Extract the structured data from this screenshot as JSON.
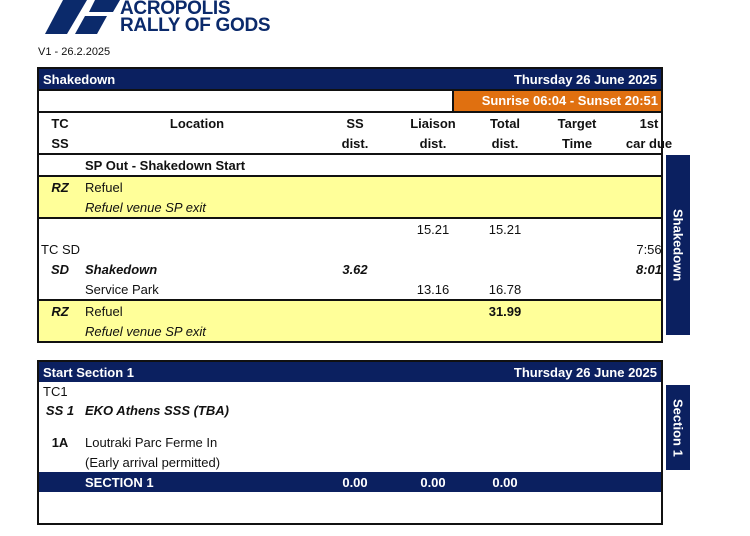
{
  "logo": {
    "line1": "ACROPOLIS",
    "line2": "RALLY OF GODS",
    "color": "#0b2a6b"
  },
  "version": "V1 - 26.2.2025",
  "colors": {
    "navy": "#0b2060",
    "orange": "#e07010",
    "yellow": "#ffff99"
  },
  "shakedown": {
    "title": "Shakedown",
    "date": "Thursday 26 June 2025",
    "sun": "Sunrise 06:04 - Sunset 20:51",
    "headers": {
      "tc1": "TC",
      "tc2": "SS",
      "loc": "Location",
      "ss1": "SS",
      "ss2": "dist.",
      "li1": "Liaison",
      "li2": "dist.",
      "to1": "Total",
      "to2": "dist.",
      "ta1": "Target",
      "ta2": "Time",
      "fc1": "1st",
      "fc2": "car due"
    },
    "sp_out": "SP Out - Shakedown Start",
    "rz1": {
      "code": "RZ",
      "loc": "Refuel",
      "note": "Refuel venue SP exit"
    },
    "r_liaison": "15.21",
    "r_total": "15.21",
    "tcsd": {
      "code": "TC SD",
      "due": "7:56"
    },
    "sd": {
      "code": "SD",
      "loc": "Shakedown",
      "ss": "3.62",
      "due": "8:01"
    },
    "sp": {
      "loc": "Service Park",
      "liaison": "13.16",
      "total": "16.78"
    },
    "rz2": {
      "code": "RZ",
      "loc": "Refuel",
      "total": "31.99",
      "note": "Refuel venue SP exit"
    },
    "side_tab": "Shakedown"
  },
  "section1": {
    "title": "Start Section 1",
    "date": "Thursday 26 June 2025",
    "tc1": "TC1",
    "ss1": {
      "code": "SS 1",
      "loc": "EKO Athens SSS (TBA)"
    },
    "a1": {
      "code": "1A",
      "loc": "Loutraki Parc Ferme In",
      "note": "(Early arrival permitted)"
    },
    "footer": {
      "label": "SECTION 1",
      "ss": "0.00",
      "liaison": "0.00",
      "total": "0.00"
    },
    "side_tab": "Section 1"
  }
}
